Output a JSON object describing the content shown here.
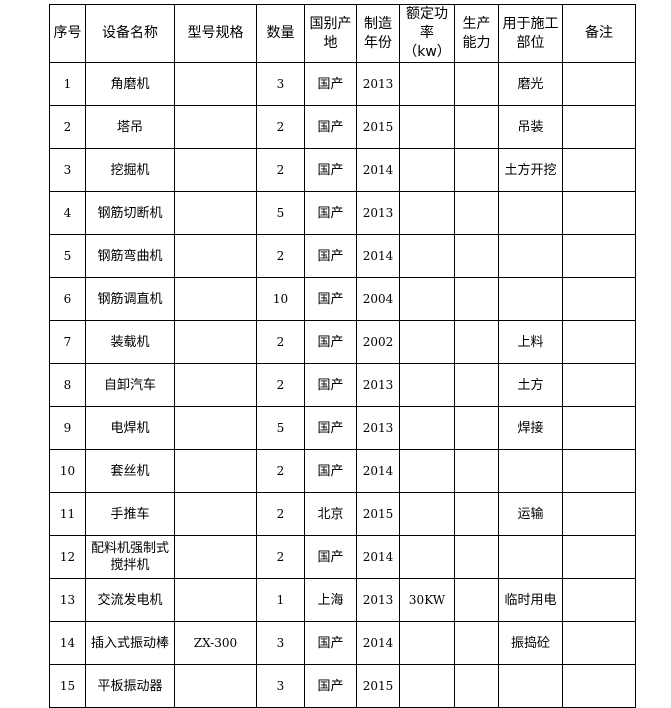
{
  "headers": [
    "序号",
    "设备名称",
    "型号规格",
    "数量",
    "国别产地",
    "制造年份",
    "额定功率（kw）",
    "生产能力",
    "用于施工部位",
    "备注"
  ],
  "rows": [
    [
      "1",
      "角磨机",
      "",
      "3",
      "国产",
      "2013",
      "",
      "",
      "磨光",
      ""
    ],
    [
      "2",
      "塔吊",
      "",
      "2",
      "国产",
      "2015",
      "",
      "",
      "吊装",
      ""
    ],
    [
      "3",
      "挖掘机",
      "",
      "2",
      "国产",
      "2014",
      "",
      "",
      "土方开挖",
      ""
    ],
    [
      "4",
      "钢筋切断机",
      "",
      "5",
      "国产",
      "2013",
      "",
      "",
      "",
      ""
    ],
    [
      "5",
      "钢筋弯曲机",
      "",
      "2",
      "国产",
      "2014",
      "",
      "",
      "",
      ""
    ],
    [
      "6",
      "钢筋调直机",
      "",
      "10",
      "国产",
      "2004",
      "",
      "",
      "",
      ""
    ],
    [
      "7",
      "装载机",
      "",
      "2",
      "国产",
      "2002",
      "",
      "",
      "上料",
      ""
    ],
    [
      "8",
      "自卸汽车",
      "",
      "2",
      "国产",
      "2013",
      "",
      "",
      "土方",
      ""
    ],
    [
      "9",
      "电焊机",
      "",
      "5",
      "国产",
      "2013",
      "",
      "",
      "焊接",
      ""
    ],
    [
      "10",
      "套丝机",
      "",
      "2",
      "国产",
      "2014",
      "",
      "",
      "",
      ""
    ],
    [
      "11",
      "手推车",
      "",
      "2",
      "北京",
      "2015",
      "",
      "",
      "运输",
      ""
    ],
    [
      "12",
      "配料机强制式搅拌机",
      "",
      "2",
      "国产",
      "2014",
      "",
      "",
      "",
      ""
    ],
    [
      "13",
      "交流发电机",
      "",
      "1",
      "上海",
      "2013",
      "30KW",
      "",
      "临时用电",
      ""
    ],
    [
      "14",
      "插入式振动棒",
      "ZX-300",
      "3",
      "国产",
      "2014",
      "",
      "",
      "振捣砼",
      ""
    ],
    [
      "15",
      "平板振动器",
      "",
      "3",
      "国产",
      "2015",
      "",
      "",
      "",
      ""
    ]
  ]
}
